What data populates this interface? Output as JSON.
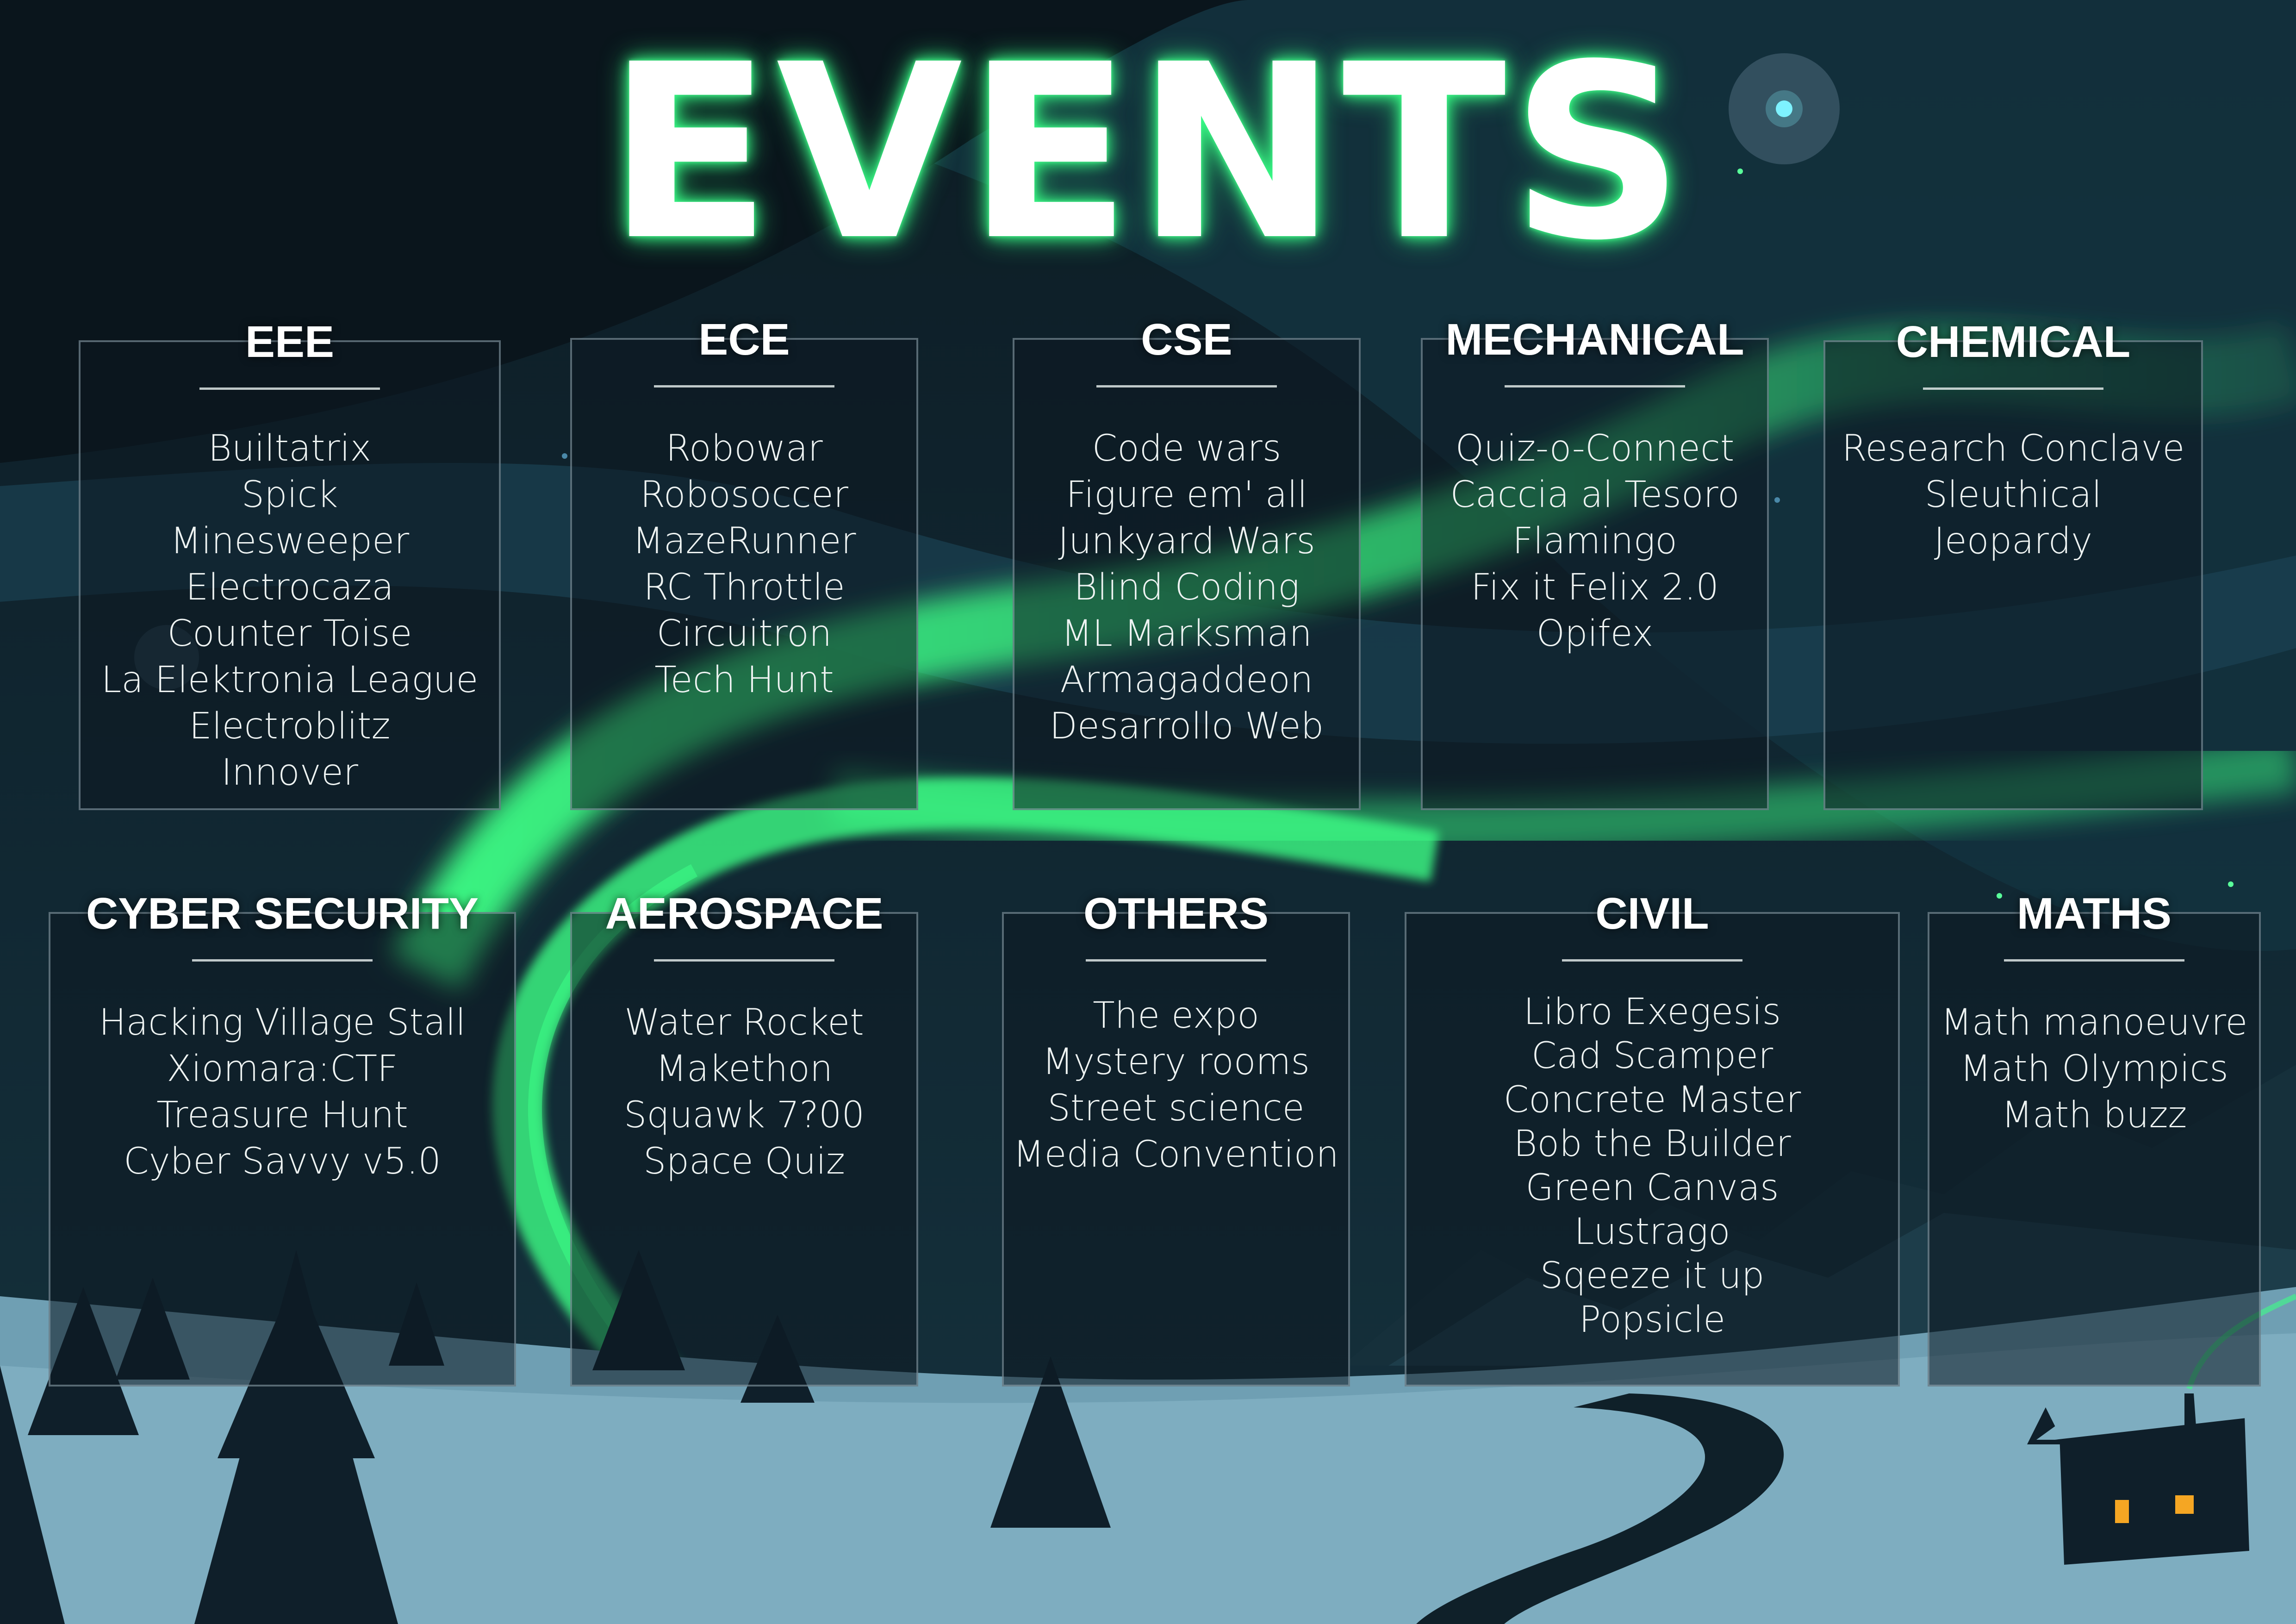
{
  "title": "EVENTS",
  "colors": {
    "sky": "#0c1a22",
    "aurora": "#3dff86",
    "snow": "#6f9fb3",
    "trees": "#0f1f2a",
    "window": "#f5a623"
  },
  "departments": [
    {
      "name": "EEE",
      "events": [
        "Builtatrix",
        "Spick",
        "Minesweeper",
        "Electrocaza",
        "Counter Toise",
        "La Elektronia League",
        "Electroblitz",
        "Innover"
      ]
    },
    {
      "name": "ECE",
      "events": [
        "Robowar",
        "Robosoccer",
        "MazeRunner",
        "RC Throttle",
        "Circuitron",
        "Tech Hunt"
      ]
    },
    {
      "name": "CSE",
      "events": [
        "Code wars",
        "Figure em' all",
        "Junkyard Wars",
        "Blind Coding",
        "ML Marksman",
        "Armagaddeon",
        "Desarrollo Web"
      ]
    },
    {
      "name": "MECHANICAL",
      "events": [
        "Quiz-o-Connect",
        "Caccia al Tesoro",
        "Flamingo",
        "Fix it Felix 2.0",
        "Opifex"
      ]
    },
    {
      "name": "CHEMICAL",
      "events": [
        "Research Conclave",
        "Sleuthical",
        "Jeopardy"
      ]
    },
    {
      "name": "CYBER SECURITY",
      "events": [
        "Hacking Village Stall",
        "Xiomara:CTF",
        "Treasure Hunt",
        "Cyber Savvy v5.0"
      ]
    },
    {
      "name": "AEROSPACE",
      "events": [
        "Water Rocket",
        "Makethon",
        "Squawk 7?00",
        "Space Quiz"
      ]
    },
    {
      "name": "OTHERS",
      "events": [
        "The expo",
        "Mystery rooms",
        "Street science",
        "Media Convention"
      ]
    },
    {
      "name": "CIVIL",
      "events": [
        "Libro Exegesis",
        "Cad Scamper",
        "Concrete Master",
        "Bob the Builder",
        "Green Canvas",
        "Lustrago",
        "Sqeeze it up",
        "Popsicle"
      ]
    },
    {
      "name": "MATHS",
      "events": [
        "Math manoeuvre",
        "Math Olympics",
        "Math buzz"
      ]
    }
  ]
}
